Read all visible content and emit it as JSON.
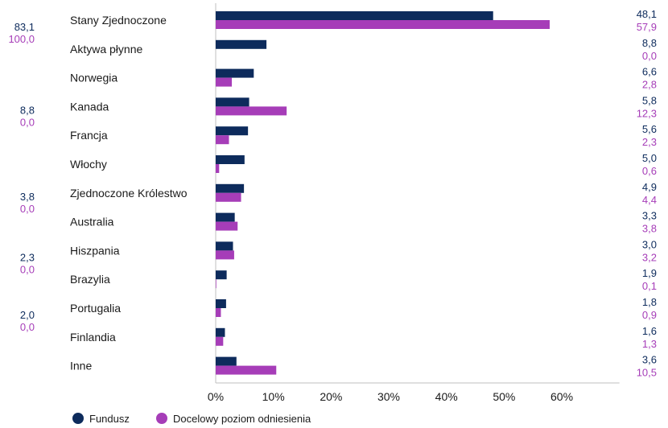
{
  "colors": {
    "fund": "#0d2b5c",
    "benchmark": "#a63db8",
    "axis": "#bfbfbf"
  },
  "chart_data": {
    "type": "bar",
    "orientation": "horizontal",
    "categories": [
      "Stany Zjednoczone",
      "Aktywa płynne",
      "Norwegia",
      "Kanada",
      "Francja",
      "Włochy",
      "Zjednoczone Królestwo",
      "Australia",
      "Hiszpania",
      "Brazylia",
      "Portugalia",
      "Finlandia",
      "Inne"
    ],
    "series": [
      {
        "name": "Fundusz",
        "values": [
          48.1,
          8.8,
          6.6,
          5.8,
          5.6,
          5.0,
          4.9,
          3.3,
          3.0,
          1.9,
          1.8,
          1.6,
          3.6
        ],
        "labels": [
          "48,1",
          "8,8",
          "6,6",
          "5,8",
          "5,6",
          "5,0",
          "4,9",
          "3,3",
          "3,0",
          "1,9",
          "1,8",
          "1,6",
          "3,6"
        ]
      },
      {
        "name": "Docelowy poziom odniesienia",
        "values": [
          57.9,
          0.0,
          2.8,
          12.3,
          2.3,
          0.6,
          4.4,
          3.8,
          3.2,
          0.1,
          0.9,
          1.3,
          10.5
        ],
        "labels": [
          "57,9",
          "0,0",
          "2,8",
          "12,3",
          "2,3",
          "0,6",
          "4,4",
          "3,8",
          "3,2",
          "0,1",
          "0,9",
          "1,3",
          "10,5"
        ]
      }
    ],
    "xticks": [
      "0%",
      "10%",
      "20%",
      "30%",
      "40%",
      "50%",
      "60%"
    ],
    "xlim": [
      0,
      70
    ],
    "legend_position": "bottom-left",
    "group_totals": [
      {
        "fund": "83,1",
        "benchmark": "100,0"
      },
      {
        "fund": "8,8",
        "benchmark": "0,0"
      },
      {
        "fund": "3,8",
        "benchmark": "0,0"
      },
      {
        "fund": "2,3",
        "benchmark": "0,0"
      },
      {
        "fund": "2,0",
        "benchmark": "0,0"
      }
    ]
  }
}
